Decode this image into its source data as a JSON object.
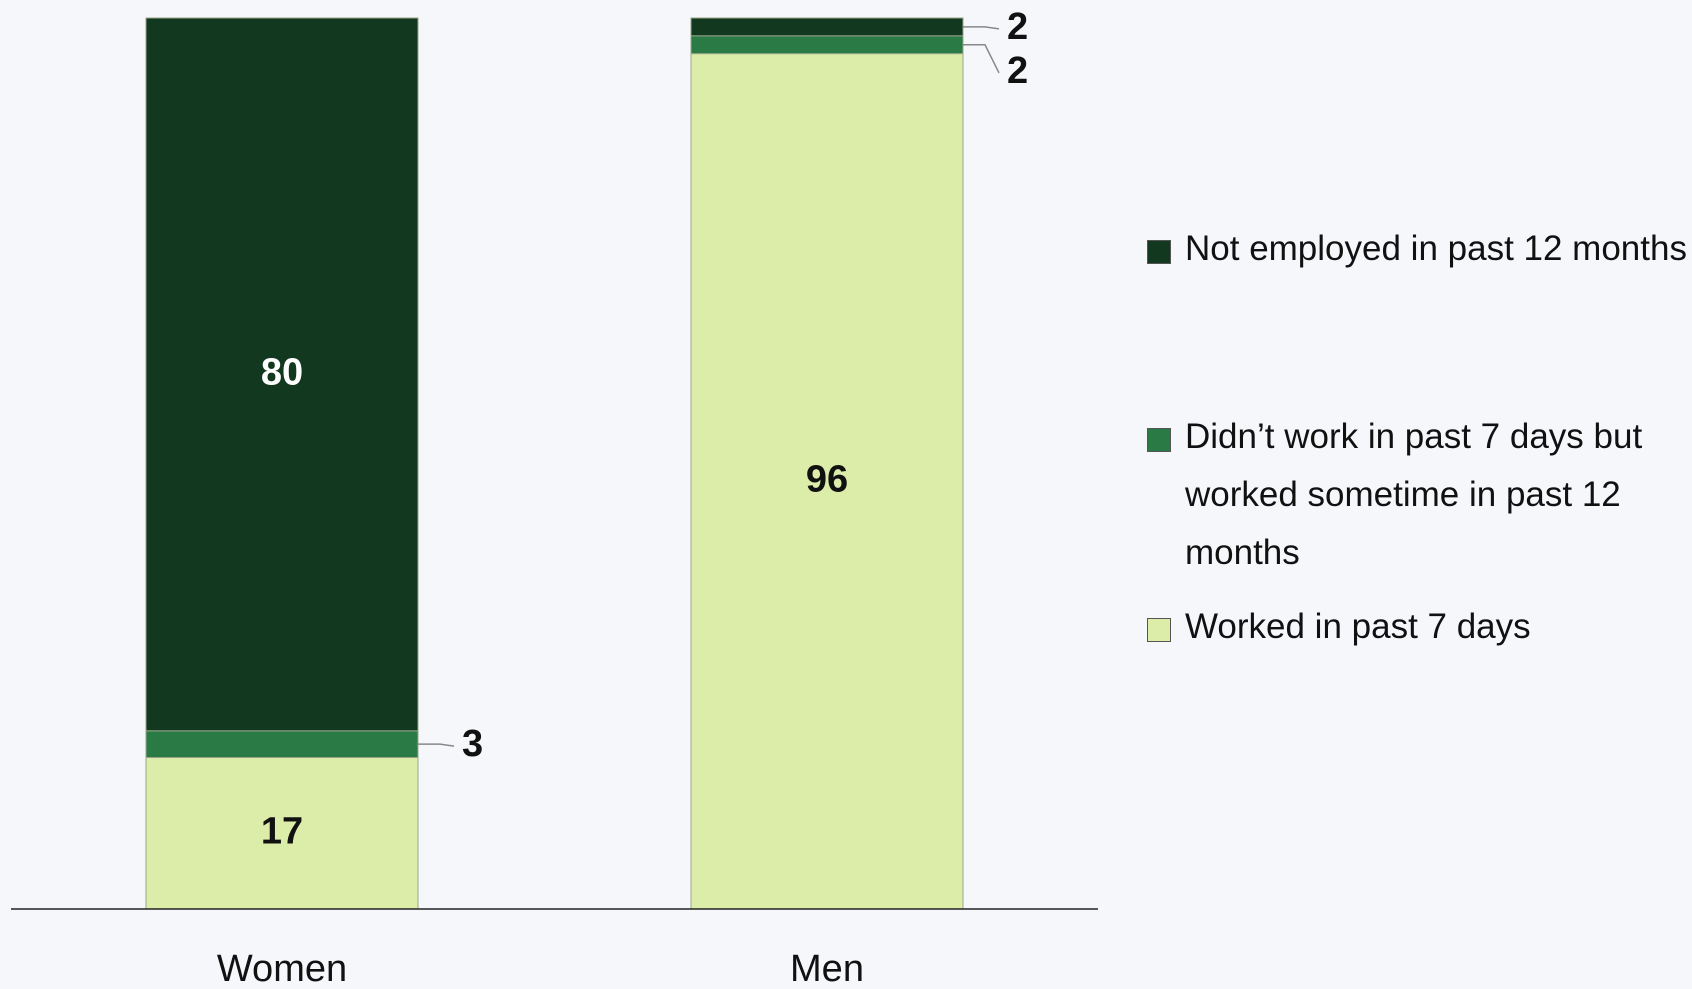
{
  "chart_data": {
    "type": "stacked_bar",
    "categories": [
      "Women",
      "Men"
    ],
    "series": [
      {
        "name": "Worked in past 7 days",
        "color": "#dcedaa",
        "values": [
          17,
          96
        ]
      },
      {
        "name": "Didn’t work in past 7 days but worked sometime in past 12 months",
        "color": "#2a7a45",
        "values": [
          3,
          2
        ]
      },
      {
        "name": "Not employed in past 12 months",
        "color": "#12381f",
        "values": [
          80,
          2
        ]
      }
    ],
    "legend": "right"
  }
}
